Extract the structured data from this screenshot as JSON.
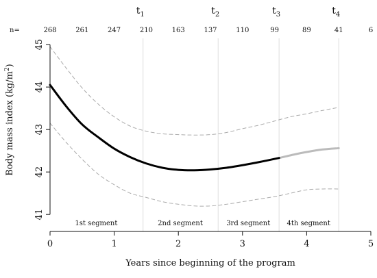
{
  "chart_data": {
    "type": "line",
    "xlabel": "Years since beginning of the program",
    "ylabel": "Body mass index (kg/m",
    "ylabel_sup": "2",
    "ylabel_close": ")",
    "xlim": [
      0,
      5
    ],
    "ylim": [
      40.6,
      45.05
    ],
    "xticks": [
      0,
      1,
      2,
      3,
      4,
      5
    ],
    "xtick_labels": [
      "0",
      "1",
      "2",
      "3",
      "4",
      "5"
    ],
    "yticks": [
      41,
      42,
      43,
      44,
      45
    ],
    "ytick_labels": [
      "41",
      "42",
      "43",
      "44",
      "45"
    ],
    "n_prefix": "n=",
    "n_at_risk": [
      {
        "x": 0.0,
        "label": "268"
      },
      {
        "x": 0.5,
        "label": "261"
      },
      {
        "x": 1.0,
        "label": "247"
      },
      {
        "x": 1.5,
        "label": "210"
      },
      {
        "x": 2.0,
        "label": "163"
      },
      {
        "x": 2.5,
        "label": "137"
      },
      {
        "x": 3.0,
        "label": "110"
      },
      {
        "x": 3.5,
        "label": "99"
      },
      {
        "x": 4.0,
        "label": "89"
      },
      {
        "x": 4.5,
        "label": "41"
      },
      {
        "x": 5.0,
        "label": "6"
      }
    ],
    "knots": [
      {
        "x": 1.45,
        "label": "t",
        "sub": "1"
      },
      {
        "x": 2.62,
        "label": "t",
        "sub": "2"
      },
      {
        "x": 3.57,
        "label": "t",
        "sub": "3"
      },
      {
        "x": 4.5,
        "label": "t",
        "sub": "4"
      }
    ],
    "segments": [
      {
        "label": "1st segment",
        "x": 0.72
      },
      {
        "label": "2nd segment",
        "x": 2.03
      },
      {
        "label": "3rd segment",
        "x": 3.09
      },
      {
        "label": "4th segment",
        "x": 4.03
      }
    ],
    "series": [
      {
        "role": "estimate",
        "color": "#000000",
        "x": [
          0,
          0.25,
          0.5,
          0.75,
          1.0,
          1.25,
          1.5,
          1.75,
          2.0,
          2.25,
          2.5,
          2.75,
          3.0,
          3.25,
          3.57
        ],
        "values": [
          44.05,
          43.55,
          43.12,
          42.82,
          42.55,
          42.35,
          42.2,
          42.1,
          42.05,
          42.04,
          42.06,
          42.1,
          42.16,
          42.23,
          42.33
        ]
      },
      {
        "role": "estimate-extrapolated",
        "color": "#bbbbbb",
        "x": [
          3.57,
          3.8,
          4.0,
          4.25,
          4.5
        ],
        "values": [
          42.33,
          42.41,
          42.47,
          42.53,
          42.56
        ]
      },
      {
        "role": "upper-ci",
        "color": "#aaaaaa",
        "dashed": true,
        "x": [
          0,
          0.25,
          0.5,
          0.75,
          1.0,
          1.25,
          1.5,
          1.75,
          2.0,
          2.25,
          2.5,
          2.75,
          3.0,
          3.25,
          3.5,
          3.75,
          4.0,
          4.25,
          4.5
        ],
        "values": [
          44.95,
          44.45,
          43.98,
          43.6,
          43.3,
          43.08,
          42.96,
          42.9,
          42.88,
          42.87,
          42.88,
          42.93,
          43.02,
          43.1,
          43.2,
          43.3,
          43.37,
          43.45,
          43.52
        ]
      },
      {
        "role": "lower-ci",
        "color": "#aaaaaa",
        "dashed": true,
        "x": [
          0,
          0.25,
          0.5,
          0.75,
          1.0,
          1.25,
          1.5,
          1.75,
          2.0,
          2.25,
          2.5,
          2.75,
          3.0,
          3.25,
          3.5,
          3.75,
          4.0,
          4.25,
          4.5
        ],
        "values": [
          43.15,
          42.7,
          42.3,
          41.95,
          41.7,
          41.5,
          41.4,
          41.3,
          41.24,
          41.2,
          41.2,
          41.24,
          41.3,
          41.36,
          41.42,
          41.5,
          41.58,
          41.6,
          41.6
        ]
      }
    ],
    "grid": false
  }
}
